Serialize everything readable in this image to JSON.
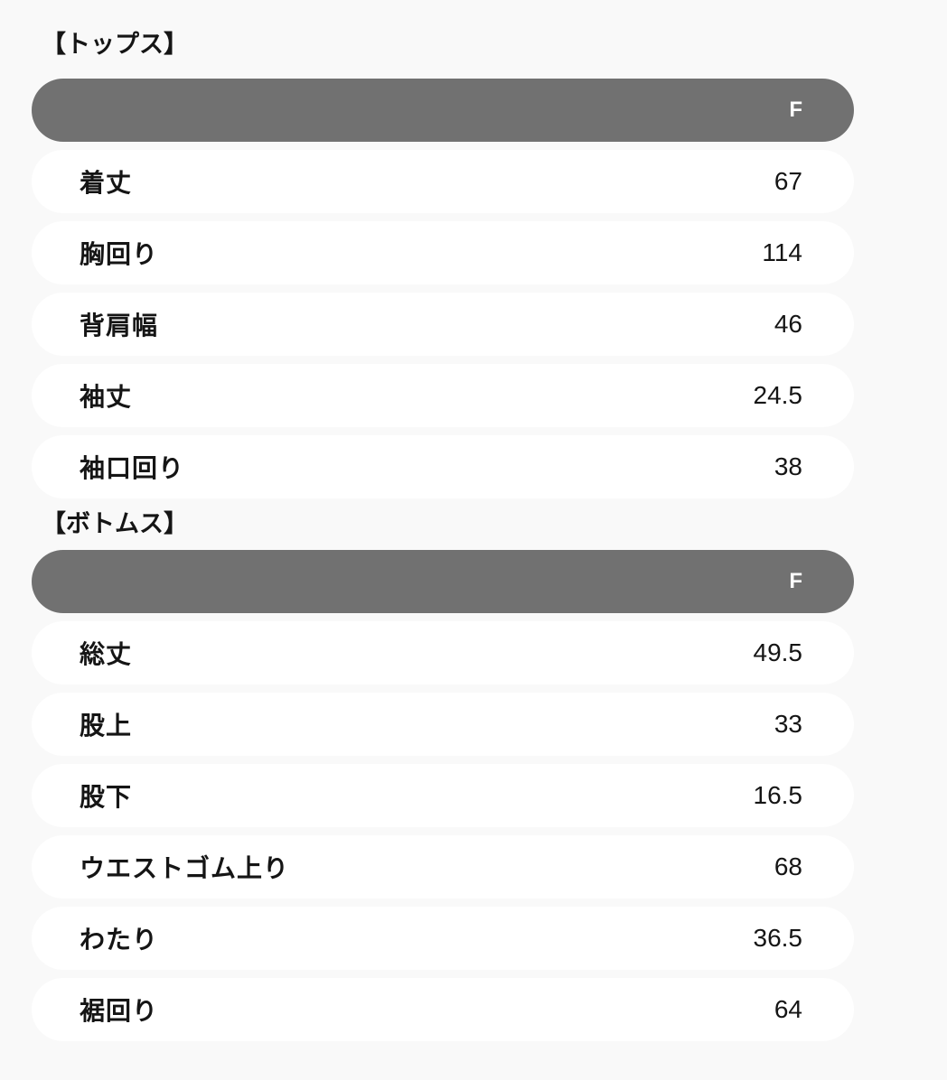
{
  "colors": {
    "page_bg": "#f9f9f9",
    "header_bar_bg": "#717171",
    "header_bar_text": "#ffffff",
    "row_bg": "#ffffff",
    "text": "#151515"
  },
  "sections": [
    {
      "heading": "【トップス】",
      "size_label": "F",
      "rows": [
        {
          "label": "着丈",
          "value": "67"
        },
        {
          "label": "胸回り",
          "value": "114"
        },
        {
          "label": "背肩幅",
          "value": "46"
        },
        {
          "label": "袖丈",
          "value": "24.5"
        },
        {
          "label": "袖口回り",
          "value": "38"
        }
      ]
    },
    {
      "heading": "【ボトムス】",
      "size_label": "F",
      "rows": [
        {
          "label": "総丈",
          "value": "49.5"
        },
        {
          "label": "股上",
          "value": "33"
        },
        {
          "label": "股下",
          "value": "16.5"
        },
        {
          "label": "ウエストゴム上り",
          "value": "68"
        },
        {
          "label": "わたり",
          "value": "36.5"
        },
        {
          "label": "裾回り",
          "value": "64"
        }
      ]
    }
  ]
}
